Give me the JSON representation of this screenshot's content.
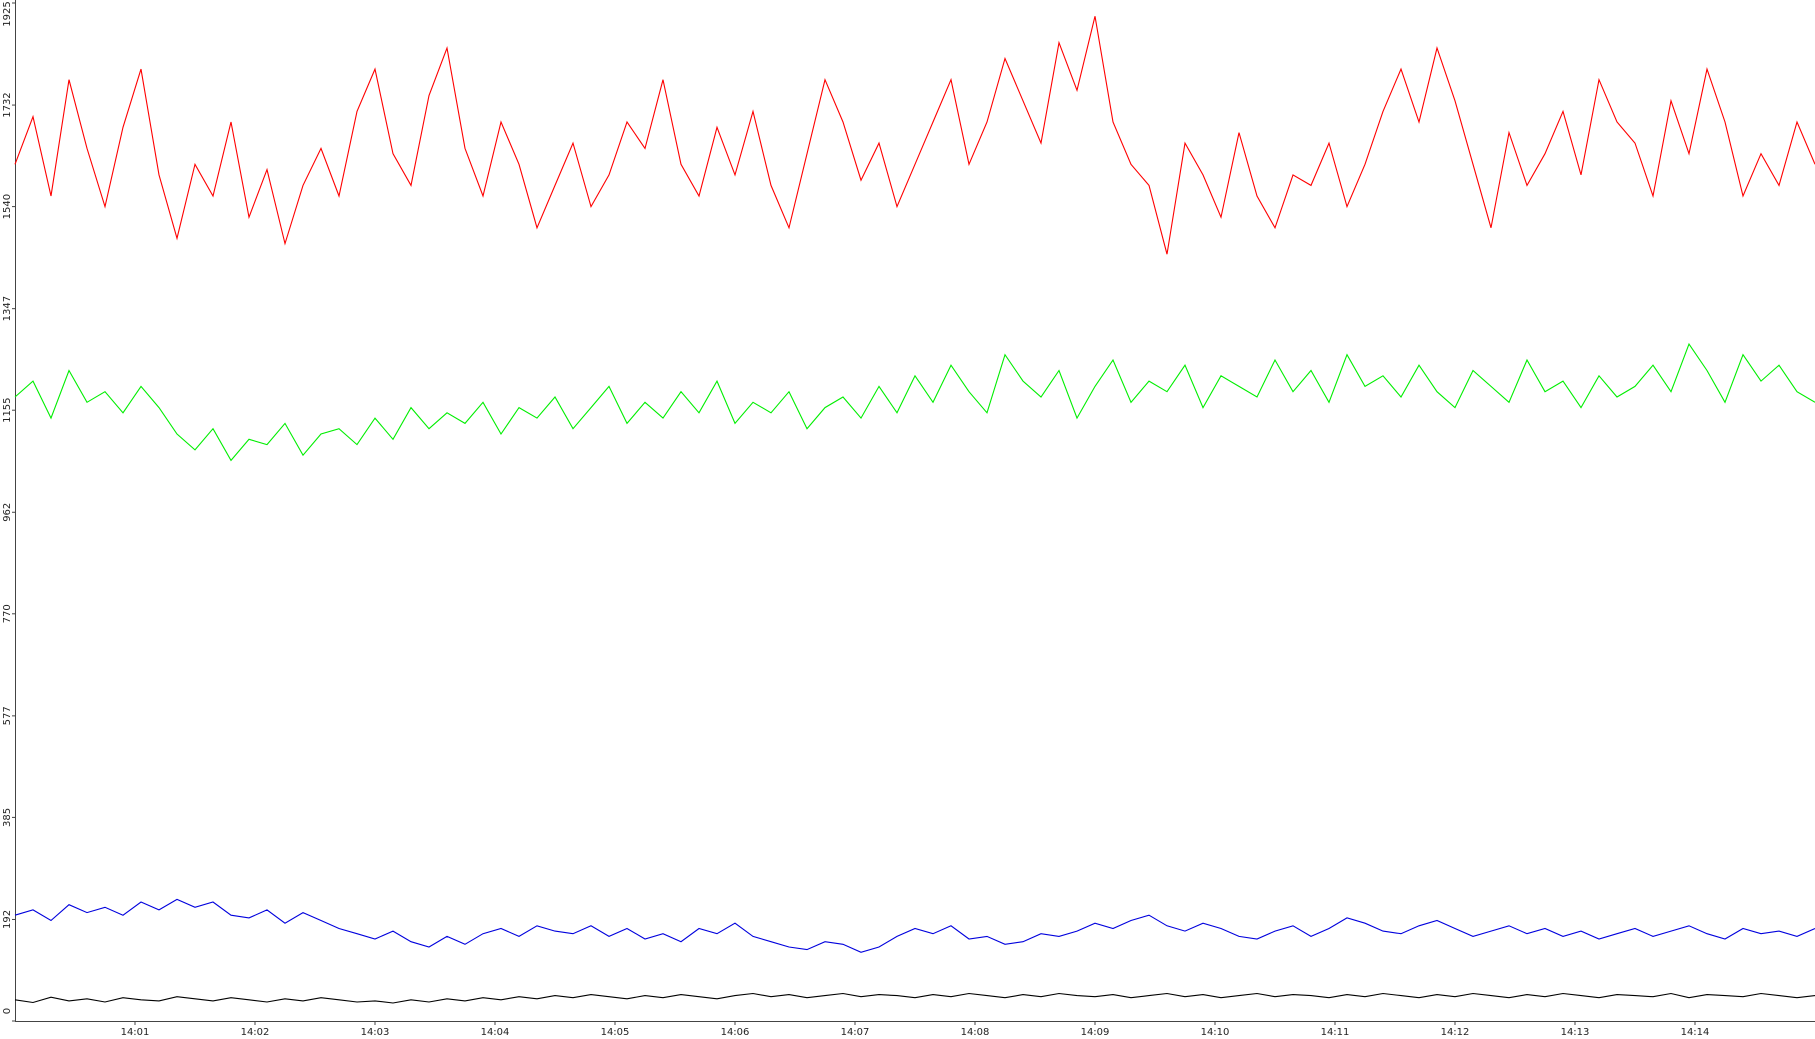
{
  "chart_data": {
    "type": "line",
    "x": [
      0,
      0.15,
      0.3,
      0.45,
      0.6,
      0.75,
      0.9,
      1.05,
      1.2,
      1.35,
      1.5,
      1.65,
      1.8,
      1.95,
      2.1,
      2.25,
      2.4,
      2.55,
      2.7,
      2.85,
      3,
      3.15,
      3.3,
      3.45,
      3.6,
      3.75,
      3.9,
      4.05,
      4.2,
      4.35,
      4.5,
      4.65,
      4.8,
      4.95,
      5.1,
      5.25,
      5.4,
      5.55,
      5.7,
      5.85,
      6,
      6.15,
      6.3,
      6.45,
      6.6,
      6.75,
      6.9,
      7.05,
      7.2,
      7.35,
      7.5,
      7.65,
      7.8,
      7.95,
      8.1,
      8.25,
      8.4,
      8.55,
      8.7,
      8.85,
      9,
      9.15,
      9.3,
      9.45,
      9.6,
      9.75,
      9.9,
      10.05,
      10.2,
      10.35,
      10.5,
      10.65,
      10.8,
      10.95,
      11.1,
      11.25,
      11.4,
      11.55,
      11.7,
      11.85,
      12,
      12.15,
      12.3,
      12.45,
      12.6,
      12.75,
      12.9,
      13.05,
      13.2,
      13.35,
      13.5,
      13.65,
      13.8,
      13.95,
      14.1,
      14.25,
      14.4,
      14.55,
      14.7,
      14.85,
      15
    ],
    "series": [
      {
        "color": "#ff0000",
        "values": [
          1620,
          1710,
          1560,
          1780,
          1650,
          1540,
          1690,
          1800,
          1600,
          1480,
          1620,
          1560,
          1700,
          1520,
          1610,
          1470,
          1580,
          1650,
          1560,
          1720,
          1800,
          1640,
          1580,
          1750,
          1840,
          1650,
          1560,
          1700,
          1620,
          1500,
          1580,
          1660,
          1540,
          1600,
          1700,
          1650,
          1780,
          1620,
          1560,
          1690,
          1600,
          1720,
          1580,
          1500,
          1640,
          1780,
          1700,
          1590,
          1660,
          1540,
          1620,
          1700,
          1780,
          1620,
          1700,
          1820,
          1740,
          1660,
          1850,
          1760,
          1900,
          1700,
          1620,
          1580,
          1450,
          1660,
          1600,
          1520,
          1680,
          1560,
          1500,
          1600,
          1580,
          1660,
          1540,
          1620,
          1720,
          1800,
          1700,
          1840,
          1740,
          1620,
          1500,
          1680,
          1580,
          1640,
          1720,
          1600,
          1780,
          1700,
          1660,
          1560,
          1740,
          1640,
          1800,
          1700,
          1560,
          1640,
          1580,
          1700,
          1620
        ]
      },
      {
        "color": "#00ee00",
        "values": [
          1180,
          1210,
          1140,
          1230,
          1170,
          1190,
          1150,
          1200,
          1160,
          1110,
          1080,
          1120,
          1060,
          1100,
          1090,
          1130,
          1070,
          1110,
          1120,
          1090,
          1140,
          1100,
          1160,
          1120,
          1150,
          1130,
          1170,
          1110,
          1160,
          1140,
          1180,
          1120,
          1160,
          1200,
          1130,
          1170,
          1140,
          1190,
          1150,
          1210,
          1130,
          1170,
          1150,
          1190,
          1120,
          1160,
          1180,
          1140,
          1200,
          1150,
          1220,
          1170,
          1240,
          1190,
          1150,
          1260,
          1210,
          1180,
          1230,
          1140,
          1200,
          1250,
          1170,
          1210,
          1190,
          1240,
          1160,
          1220,
          1200,
          1180,
          1250,
          1190,
          1230,
          1170,
          1260,
          1200,
          1220,
          1180,
          1240,
          1190,
          1160,
          1230,
          1200,
          1170,
          1250,
          1190,
          1210,
          1160,
          1220,
          1180,
          1200,
          1240,
          1190,
          1280,
          1230,
          1170,
          1260,
          1210,
          1240,
          1190,
          1170
        ]
      },
      {
        "color": "#0000dd",
        "values": [
          200,
          210,
          190,
          220,
          205,
          215,
          200,
          225,
          210,
          230,
          215,
          225,
          200,
          195,
          210,
          185,
          205,
          190,
          175,
          165,
          155,
          170,
          150,
          140,
          160,
          145,
          165,
          175,
          160,
          180,
          170,
          165,
          180,
          160,
          175,
          155,
          165,
          150,
          175,
          165,
          185,
          160,
          150,
          140,
          135,
          150,
          145,
          130,
          140,
          160,
          175,
          165,
          180,
          155,
          160,
          145,
          150,
          165,
          160,
          170,
          185,
          175,
          190,
          200,
          180,
          170,
          185,
          175,
          160,
          155,
          170,
          180,
          160,
          175,
          195,
          185,
          170,
          165,
          180,
          190,
          175,
          160,
          170,
          180,
          165,
          175,
          160,
          170,
          155,
          165,
          175,
          160,
          170,
          180,
          165,
          155,
          175,
          165,
          170,
          160,
          175
        ]
      },
      {
        "color": "#000000",
        "values": [
          40,
          35,
          45,
          38,
          42,
          36,
          44,
          40,
          38,
          46,
          42,
          38,
          44,
          40,
          36,
          42,
          38,
          44,
          40,
          36,
          38,
          34,
          40,
          36,
          42,
          38,
          44,
          40,
          46,
          42,
          48,
          44,
          50,
          46,
          42,
          48,
          44,
          50,
          46,
          42,
          48,
          52,
          46,
          50,
          44,
          48,
          52,
          46,
          50,
          48,
          44,
          50,
          46,
          52,
          48,
          44,
          50,
          46,
          52,
          48,
          46,
          50,
          44,
          48,
          52,
          46,
          50,
          44,
          48,
          52,
          46,
          50,
          48,
          44,
          50,
          46,
          52,
          48,
          44,
          50,
          46,
          52,
          48,
          44,
          50,
          46,
          52,
          48,
          44,
          50,
          48,
          46,
          52,
          44,
          50,
          48,
          46,
          52,
          48,
          44,
          48
        ]
      }
    ],
    "xlim": [
      0,
      15
    ],
    "xticks": [
      {
        "value": 1,
        "label": "14:01"
      },
      {
        "value": 2,
        "label": "14:02"
      },
      {
        "value": 3,
        "label": "14:03"
      },
      {
        "value": 4,
        "label": "14:04"
      },
      {
        "value": 5,
        "label": "14:05"
      },
      {
        "value": 6,
        "label": "14:06"
      },
      {
        "value": 7,
        "label": "14:07"
      },
      {
        "value": 8,
        "label": "14:08"
      },
      {
        "value": 9,
        "label": "14:09"
      },
      {
        "value": 10,
        "label": "14:10"
      },
      {
        "value": 11,
        "label": "14:11"
      },
      {
        "value": 12,
        "label": "14:12"
      },
      {
        "value": 13,
        "label": "14:13"
      },
      {
        "value": 14,
        "label": "14:14"
      }
    ],
    "ylim": [
      0,
      1925
    ],
    "yticks": [
      0,
      192,
      385,
      577,
      770,
      962,
      1155,
      1347,
      1540,
      1732,
      1925
    ]
  }
}
